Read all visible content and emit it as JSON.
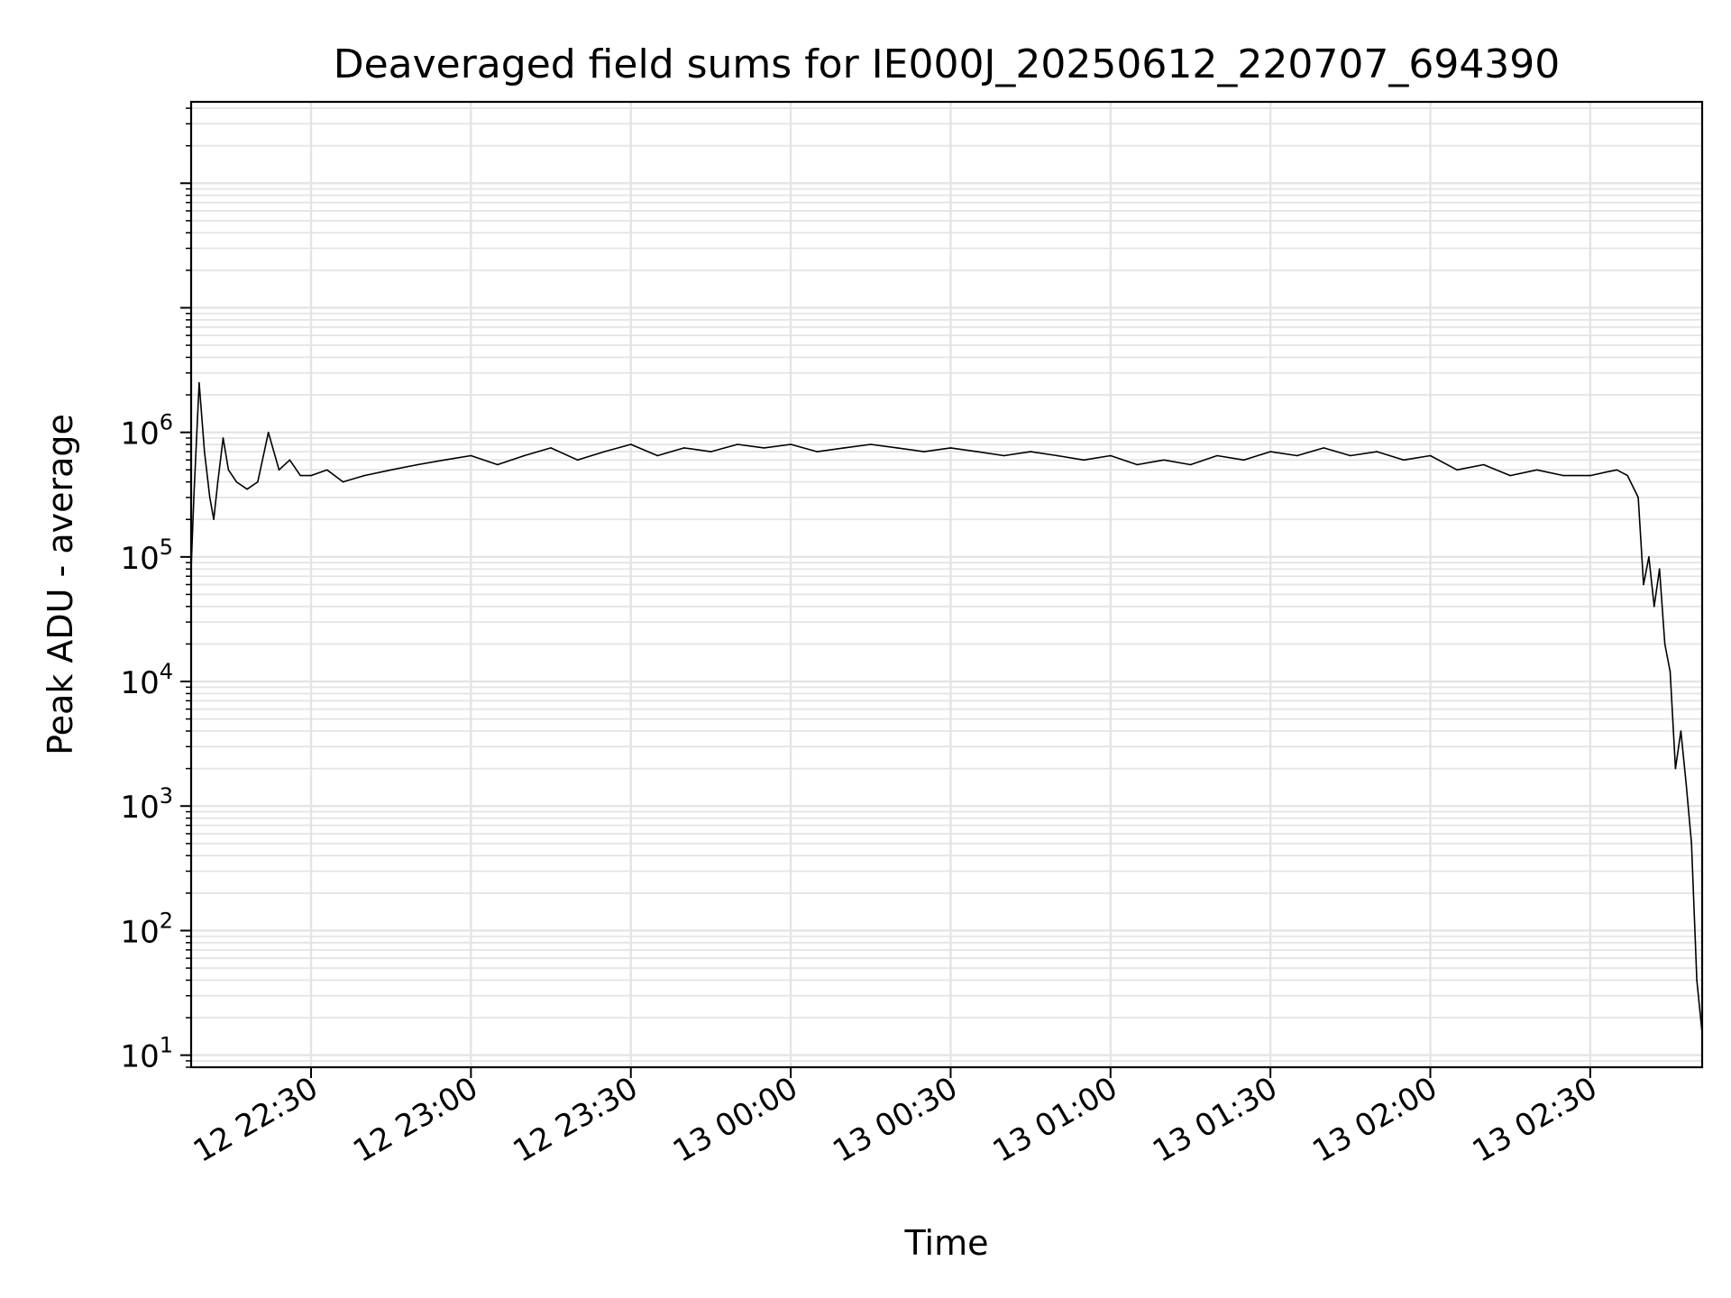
{
  "chart_data": {
    "type": "line",
    "title": "Deaveraged field sums for IE000J_20250612_220707_694390",
    "xlabel": "Time",
    "ylabel": "Peak ADU - average",
    "yscale": "log",
    "ylim": [
      8,
      450000000
    ],
    "xlim": [
      "12 22:07:30",
      "13 02:51:00"
    ],
    "grid": true,
    "x_ticks": [
      "12 22:30",
      "12 23:00",
      "12 23:30",
      "13 00:00",
      "13 00:30",
      "13 01:00",
      "13 01:30",
      "13 02:00",
      "13 02:30"
    ],
    "y_ticks": [
      {
        "base": "10",
        "exp": "1",
        "value": 10
      },
      {
        "base": "10",
        "exp": "2",
        "value": 100
      },
      {
        "base": "10",
        "exp": "3",
        "value": 1000
      },
      {
        "base": "10",
        "exp": "4",
        "value": 10000
      },
      {
        "base": "10",
        "exp": "5",
        "value": 100000
      },
      {
        "base": "10",
        "exp": "6",
        "value": 1000000
      }
    ],
    "line_color": "#000000",
    "series": [
      {
        "x": [
          "12 22:07:30",
          "12 22:08:00",
          "12 22:09:00",
          "12 22:10:00",
          "12 22:11:00",
          "12 22:11:45",
          "12 22:12:30",
          "12 22:13:30",
          "12 22:14:30",
          "12 22:16:00",
          "12 22:18:00",
          "12 22:20:00",
          "12 22:22:00",
          "12 22:24:00",
          "12 22:26:00",
          "12 22:28:00",
          "12 22:30:00",
          "12 22:33:00",
          "12 22:36:00",
          "12 22:40:00",
          "12 22:45:00",
          "12 22:50:00",
          "12 22:55:00",
          "12 23:00:00",
          "12 23:05:00",
          "12 23:10:00",
          "12 23:15:00",
          "12 23:20:00",
          "12 23:25:00",
          "12 23:30:00",
          "12 23:35:00",
          "12 23:40:00",
          "12 23:45:00",
          "12 23:50:00",
          "12 23:55:00",
          "13 00:00:00",
          "13 00:05:00",
          "13 00:10:00",
          "13 00:15:00",
          "13 00:20:00",
          "13 00:25:00",
          "13 00:30:00",
          "13 00:35:00",
          "13 00:40:00",
          "13 00:45:00",
          "13 00:50:00",
          "13 00:55:00",
          "13 01:00:00",
          "13 01:05:00",
          "13 01:10:00",
          "13 01:15:00",
          "13 01:20:00",
          "13 01:25:00",
          "13 01:30:00",
          "13 01:35:00",
          "13 01:40:00",
          "13 01:45:00",
          "13 01:50:00",
          "13 01:55:00",
          "13 02:00:00",
          "13 02:05:00",
          "13 02:10:00",
          "13 02:15:00",
          "13 02:20:00",
          "13 02:25:00",
          "13 02:30:00",
          "13 02:33:00",
          "13 02:35:00",
          "13 02:37:00",
          "13 02:39:00",
          "13 02:40:00",
          "13 02:41:00",
          "13 02:42:00",
          "13 02:43:00",
          "13 02:44:00",
          "13 02:45:00",
          "13 02:46:00",
          "13 02:47:00",
          "13 02:48:00",
          "13 02:49:00",
          "13 02:50:00",
          "13 02:51:00"
        ],
        "y": [
          80000,
          300000,
          2500000,
          700000,
          300000,
          200000,
          400000,
          900000,
          500000,
          400000,
          350000,
          400000,
          1000000,
          500000,
          600000,
          450000,
          450000,
          500000,
          400000,
          450000,
          500000,
          550000,
          600000,
          650000,
          550000,
          650000,
          750000,
          600000,
          700000,
          800000,
          650000,
          750000,
          700000,
          800000,
          750000,
          800000,
          700000,
          750000,
          800000,
          750000,
          700000,
          750000,
          700000,
          650000,
          700000,
          650000,
          600000,
          650000,
          550000,
          600000,
          550000,
          650000,
          600000,
          700000,
          650000,
          750000,
          650000,
          700000,
          600000,
          650000,
          500000,
          550000,
          450000,
          500000,
          450000,
          450000,
          480000,
          500000,
          450000,
          300000,
          60000,
          100000,
          40000,
          80000,
          20000,
          12000,
          2000,
          4000,
          1500,
          500,
          40,
          15
        ]
      }
    ]
  }
}
